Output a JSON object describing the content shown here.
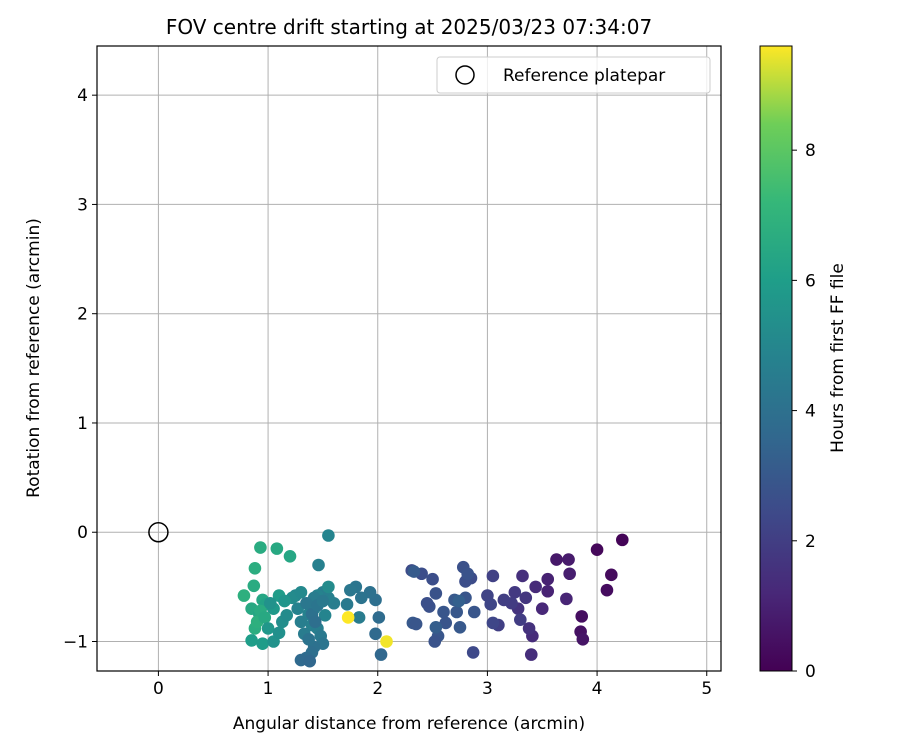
{
  "chart_data": {
    "type": "scatter",
    "title": "FOV centre drift starting at 2025/03/23 07:34:07",
    "xlabel": "Angular distance from reference (arcmin)",
    "ylabel": "Rotation from reference (arcmin)",
    "xlim": [
      -0.56,
      5.13
    ],
    "ylim": [
      -1.27,
      4.45
    ],
    "xticks": [
      0,
      1,
      2,
      3,
      4,
      5
    ],
    "yticks": [
      -1,
      0,
      1,
      2,
      3,
      4
    ],
    "grid": true,
    "legend": {
      "placement": "upper-right",
      "entries": [
        "Reference platepar"
      ]
    },
    "reference_point": {
      "name": "Reference platepar",
      "x": 0,
      "y": 0
    },
    "colorbar": {
      "label": "Hours from first FF file",
      "min": 0,
      "max": 9.6,
      "ticks": [
        0,
        2,
        4,
        6,
        8
      ],
      "colormap": "viridis"
    },
    "points": [
      [
        4.23,
        -0.07,
        0.1
      ],
      [
        4.0,
        -0.16,
        0.2
      ],
      [
        4.13,
        -0.39,
        0.3
      ],
      [
        4.09,
        -0.53,
        0.35
      ],
      [
        3.86,
        -0.77,
        0.4
      ],
      [
        3.85,
        -0.91,
        0.5
      ],
      [
        3.87,
        -0.98,
        0.6
      ],
      [
        3.63,
        -0.25,
        0.7
      ],
      [
        3.74,
        -0.25,
        0.8
      ],
      [
        3.75,
        -0.38,
        0.9
      ],
      [
        3.55,
        -0.43,
        1.0
      ],
      [
        3.55,
        -0.54,
        1.05
      ],
      [
        3.72,
        -0.61,
        1.1
      ],
      [
        3.5,
        -0.7,
        1.2
      ],
      [
        3.44,
        -0.5,
        1.3
      ],
      [
        3.41,
        -0.95,
        1.35
      ],
      [
        3.4,
        -1.12,
        1.4
      ],
      [
        3.32,
        -0.4,
        1.5
      ],
      [
        3.38,
        -0.88,
        1.55
      ],
      [
        3.28,
        -0.7,
        1.6
      ],
      [
        3.35,
        -0.6,
        1.7
      ],
      [
        3.25,
        -0.55,
        1.8
      ],
      [
        3.22,
        -0.65,
        1.9
      ],
      [
        3.3,
        -0.8,
        1.95
      ],
      [
        3.15,
        -0.62,
        2.0
      ],
      [
        3.1,
        -0.85,
        2.05
      ],
      [
        3.05,
        -0.4,
        2.1
      ],
      [
        3.0,
        -0.58,
        2.2
      ],
      [
        3.03,
        -0.66,
        2.25
      ],
      [
        3.05,
        -0.83,
        2.3
      ],
      [
        2.87,
        -1.1,
        2.4
      ],
      [
        2.85,
        -0.42,
        2.5
      ],
      [
        2.8,
        -0.45,
        2.6
      ],
      [
        2.78,
        -0.32,
        2.7
      ],
      [
        2.82,
        -0.38,
        2.8
      ],
      [
        2.8,
        -0.6,
        2.85
      ],
      [
        2.88,
        -0.73,
        2.9
      ],
      [
        2.7,
        -0.62,
        3.0
      ],
      [
        2.72,
        -0.73,
        2.95
      ],
      [
        2.75,
        -0.87,
        3.0
      ],
      [
        2.6,
        -0.73,
        2.9
      ],
      [
        2.62,
        -0.83,
        2.85
      ],
      [
        2.55,
        -0.95,
        2.9
      ],
      [
        2.52,
        -1.0,
        2.8
      ],
      [
        2.53,
        -0.56,
        2.75
      ],
      [
        2.47,
        -0.68,
        2.7
      ],
      [
        2.45,
        -0.65,
        2.65
      ],
      [
        2.5,
        -0.43,
        2.6
      ],
      [
        2.4,
        -0.38,
        2.55
      ],
      [
        2.31,
        -0.35,
        2.5
      ],
      [
        2.33,
        -0.36,
        3.1
      ],
      [
        2.32,
        -0.83,
        3.0
      ],
      [
        2.35,
        -0.84,
        2.9
      ],
      [
        2.53,
        -0.87,
        3.2
      ],
      [
        2.74,
        -0.63,
        3.3
      ],
      [
        2.03,
        -1.12,
        3.6
      ],
      [
        1.98,
        -0.93,
        3.7
      ],
      [
        2.01,
        -0.78,
        3.8
      ],
      [
        1.98,
        -0.62,
        3.9
      ],
      [
        1.93,
        -0.55,
        4.0
      ],
      [
        1.85,
        -0.6,
        4.1
      ],
      [
        1.8,
        -0.5,
        4.2
      ],
      [
        1.75,
        -0.53,
        4.3
      ],
      [
        1.72,
        -0.66,
        4.4
      ],
      [
        1.83,
        -0.78,
        4.5
      ],
      [
        1.6,
        -0.65,
        4.6
      ],
      [
        1.55,
        -0.6,
        4.7
      ],
      [
        1.5,
        -0.55,
        4.6
      ],
      [
        1.45,
        -0.58,
        4.8
      ],
      [
        1.52,
        -0.76,
        4.9
      ],
      [
        1.42,
        -0.7,
        5.0
      ],
      [
        1.37,
        -0.75,
        4.8
      ],
      [
        1.4,
        -0.85,
        4.7
      ],
      [
        1.45,
        -0.88,
        4.6
      ],
      [
        1.48,
        -0.95,
        4.4
      ],
      [
        1.5,
        -1.02,
        4.2
      ],
      [
        1.42,
        -1.05,
        4.0
      ],
      [
        1.4,
        -1.1,
        3.9
      ],
      [
        1.35,
        -1.15,
        3.8
      ],
      [
        1.3,
        -1.17,
        3.7
      ],
      [
        1.38,
        -1.18,
        3.6
      ],
      [
        1.33,
        -0.93,
        4.5
      ],
      [
        1.3,
        -0.82,
        4.6
      ],
      [
        1.27,
        -0.7,
        4.8
      ],
      [
        1.25,
        -0.58,
        5.0
      ],
      [
        1.22,
        -0.6,
        5.2
      ],
      [
        1.3,
        -0.55,
        5.1
      ],
      [
        1.55,
        -0.5,
        5.2
      ],
      [
        1.55,
        -0.03,
        4.9
      ],
      [
        1.46,
        -0.3,
        4.7
      ],
      [
        1.42,
        -0.6,
        4.5
      ],
      [
        1.35,
        -0.65,
        4.3
      ],
      [
        1.4,
        -0.75,
        4.0
      ],
      [
        1.43,
        -0.82,
        3.9
      ],
      [
        1.45,
        -0.67,
        4.2
      ],
      [
        1.5,
        -0.63,
        4.4
      ],
      [
        1.37,
        -0.98,
        4.1
      ],
      [
        1.2,
        -0.22,
        6.4
      ],
      [
        1.08,
        -0.15,
        6.5
      ],
      [
        0.93,
        -0.14,
        6.6
      ],
      [
        0.88,
        -0.33,
        6.7
      ],
      [
        0.87,
        -0.49,
        6.6
      ],
      [
        0.78,
        -0.58,
        6.8
      ],
      [
        0.85,
        -0.7,
        6.5
      ],
      [
        0.95,
        -0.62,
        6.4
      ],
      [
        0.92,
        -0.75,
        6.3
      ],
      [
        0.98,
        -0.66,
        6.2
      ],
      [
        0.88,
        -0.88,
        6.7
      ],
      [
        0.9,
        -0.82,
        6.8
      ],
      [
        0.93,
        -0.72,
        6.6
      ],
      [
        0.97,
        -0.78,
        6.5
      ],
      [
        0.85,
        -0.99,
        6.0
      ],
      [
        0.95,
        -1.02,
        5.9
      ],
      [
        1.0,
        -0.88,
        5.7
      ],
      [
        1.05,
        -1.0,
        5.5
      ],
      [
        1.1,
        -0.92,
        5.4
      ],
      [
        1.13,
        -0.82,
        5.3
      ],
      [
        1.17,
        -0.76,
        5.2
      ],
      [
        1.1,
        -0.58,
        5.9
      ],
      [
        1.15,
        -0.63,
        5.6
      ],
      [
        1.05,
        -0.7,
        5.8
      ],
      [
        1.02,
        -0.65,
        5.5
      ],
      [
        1.73,
        -0.78,
        9.6
      ],
      [
        2.08,
        -1.0,
        9.5
      ]
    ]
  }
}
